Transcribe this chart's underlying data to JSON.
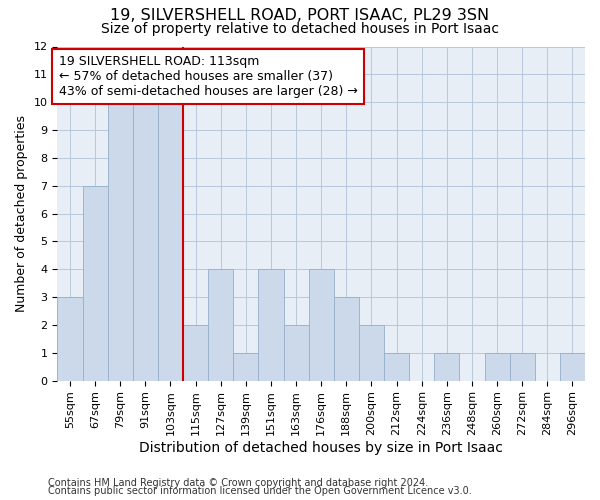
{
  "title1": "19, SILVERSHELL ROAD, PORT ISAAC, PL29 3SN",
  "title2": "Size of property relative to detached houses in Port Isaac",
  "xlabel": "Distribution of detached houses by size in Port Isaac",
  "ylabel": "Number of detached properties",
  "footnote1": "Contains HM Land Registry data © Crown copyright and database right 2024.",
  "footnote2": "Contains public sector information licensed under the Open Government Licence v3.0.",
  "annotation_line1": "19 SILVERSHELL ROAD: 113sqm",
  "annotation_line2": "← 57% of detached houses are smaller (37)",
  "annotation_line3": "43% of semi-detached houses are larger (28) →",
  "bar_labels": [
    "55sqm",
    "67sqm",
    "79sqm",
    "91sqm",
    "103sqm",
    "115sqm",
    "127sqm",
    "139sqm",
    "151sqm",
    "163sqm",
    "176sqm",
    "188sqm",
    "200sqm",
    "212sqm",
    "224sqm",
    "236sqm",
    "248sqm",
    "260sqm",
    "272sqm",
    "284sqm",
    "296sqm"
  ],
  "bar_heights": [
    3,
    7,
    10,
    10,
    10,
    2,
    4,
    1,
    4,
    2,
    4,
    3,
    2,
    1,
    0,
    1,
    0,
    1,
    1,
    0,
    1
  ],
  "bar_color": "#ccd9ea",
  "bar_edge_color": "#93afc8",
  "vline_x_index": 5.0,
  "vline_color": "#cc0000",
  "ylim": [
    0,
    12
  ],
  "yticks": [
    0,
    1,
    2,
    3,
    4,
    5,
    6,
    7,
    8,
    9,
    10,
    11,
    12
  ],
  "grid_color": "#b8c8dc",
  "bg_color": "#e8eef6",
  "title1_fontsize": 11.5,
  "title2_fontsize": 10,
  "xlabel_fontsize": 10,
  "ylabel_fontsize": 9,
  "tick_fontsize": 8,
  "annotation_fontsize": 9,
  "footnote_fontsize": 7
}
